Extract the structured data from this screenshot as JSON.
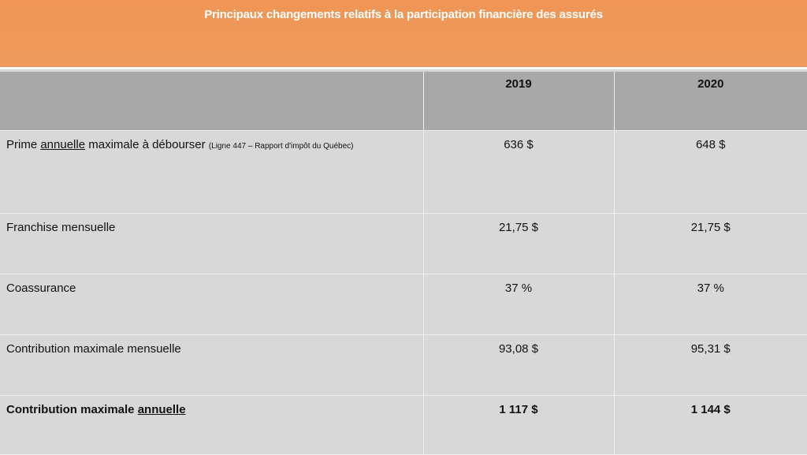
{
  "title": "Principaux changements relatifs à la participation financière des assurés",
  "header": {
    "col1": "",
    "col2": "2019",
    "col3": "2020"
  },
  "rows": [
    {
      "label_pre": "Prime ",
      "label_u": "annuelle",
      "label_post": " maximale à débourser",
      "note": "(Ligne 447 – Rapport d'impôt du Québec)",
      "v2019": "636 $",
      "v2020": "648 $"
    },
    {
      "label": "Franchise mensuelle",
      "v2019": "21,75 $",
      "v2020": "21,75 $"
    },
    {
      "label": "Coassurance",
      "v2019": "37 %",
      "v2020": "37 %"
    },
    {
      "label": "Contribution maximale mensuelle",
      "v2019": "93,08 $",
      "v2020": "95,31 $"
    },
    {
      "label_pre": "Contribution maximale ",
      "label_u": "annuelle",
      "v2019": "1 117 $",
      "v2020": "1 144 $"
    }
  ],
  "colors": {
    "title_bar": "#ef9656",
    "header_bg": "#a9a8a6",
    "body_bg": "#d8d8d8",
    "title_text": "#ffffff"
  }
}
